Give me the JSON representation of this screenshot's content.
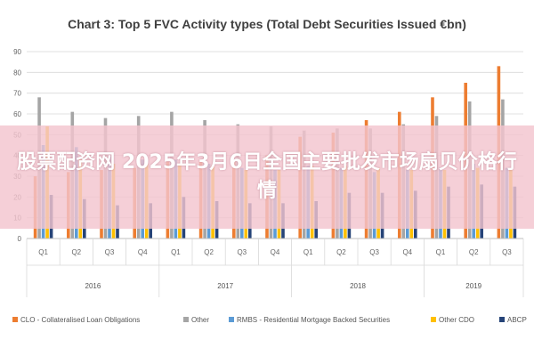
{
  "chart_data": {
    "type": "bar",
    "title": "Chart 3: Top 5 FVC Activity types (Total Debt Securities Issued €bn)",
    "categories": [
      "Q1",
      "Q2",
      "Q3",
      "Q4",
      "Q1",
      "Q2",
      "Q3",
      "Q4",
      "Q1",
      "Q2",
      "Q3",
      "Q4",
      "Q1",
      "Q2",
      "Q3"
    ],
    "groups": [
      {
        "label": "2016",
        "span": [
          0,
          3
        ]
      },
      {
        "label": "2017",
        "span": [
          4,
          7
        ]
      },
      {
        "label": "2018",
        "span": [
          8,
          11
        ]
      },
      {
        "label": "2019",
        "span": [
          12,
          14
        ]
      }
    ],
    "series": [
      {
        "name": "CLO - Collateralised Loan Obligations",
        "color": "#ED7D31",
        "values": [
          30,
          32,
          33,
          34,
          37,
          37,
          38,
          40,
          49,
          51,
          57,
          61,
          68,
          75,
          83
        ]
      },
      {
        "name": "Other",
        "color": "#A5A5A5",
        "values": [
          68,
          61,
          58,
          59,
          61,
          57,
          55,
          54,
          52,
          53,
          53,
          55,
          59,
          66,
          67
        ]
      },
      {
        "name": "RMBS - Residential Mortgage Backed Securities",
        "color": "#5B9BD5",
        "values": [
          45,
          44,
          40,
          38,
          38,
          36,
          34,
          33,
          35,
          34,
          32,
          33,
          34,
          36,
          34
        ]
      },
      {
        "name": "Other CDO",
        "color": "#FFC000",
        "values": [
          54,
          38,
          36,
          36,
          36,
          35,
          33,
          33,
          35,
          35,
          34,
          33,
          33,
          34,
          33
        ]
      },
      {
        "name": "ABCP",
        "color": "#264478",
        "values": [
          21,
          19,
          16,
          17,
          20,
          18,
          17,
          17,
          18,
          22,
          22,
          23,
          25,
          26,
          25
        ]
      }
    ],
    "ylim": [
      0,
      90
    ],
    "yticks": [
      0,
      10,
      20,
      30,
      40,
      50,
      60,
      70,
      80,
      90
    ],
    "grid": true,
    "legend": "bottom"
  },
  "overlay": {
    "text": "股票配资网 2025年3月6日全国主要批发市场扇贝价格行情"
  }
}
